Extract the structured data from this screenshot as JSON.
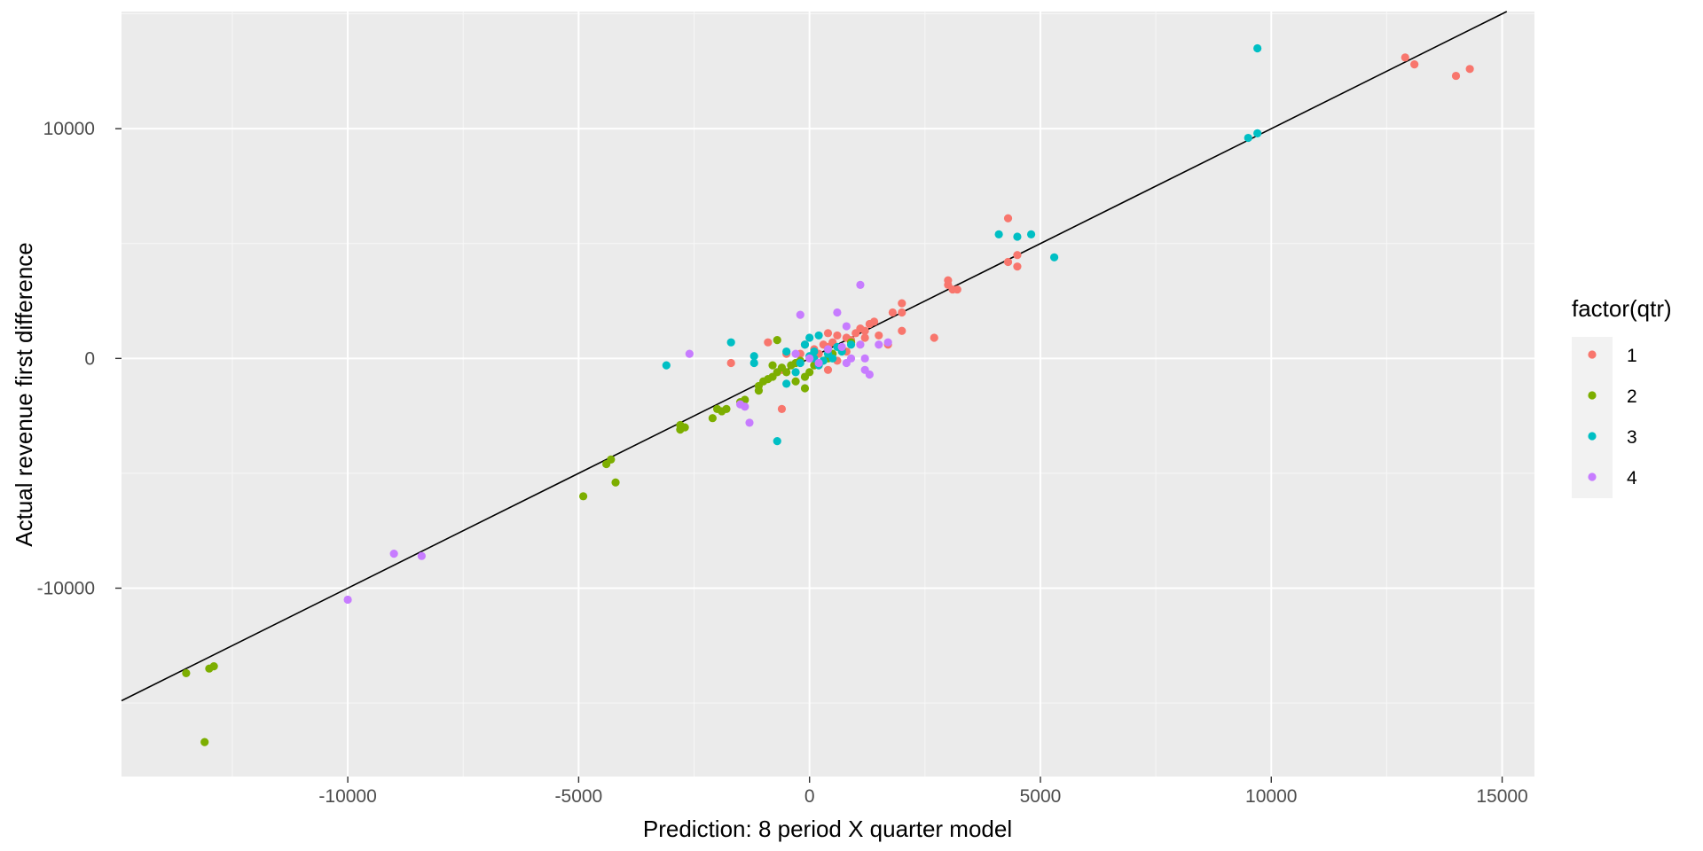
{
  "chart_data": {
    "type": "scatter",
    "xlabel": "Prediction: 8 period X quarter model",
    "ylabel": "Actual revenue first difference",
    "xlim": [
      -14900,
      15700
    ],
    "ylim": [
      -18200,
      15100
    ],
    "x_ticks": [
      -10000,
      -5000,
      0,
      5000,
      10000,
      15000
    ],
    "x_tick_labels": [
      "-10000",
      "-5000",
      "0",
      "5000",
      "10000",
      "15000"
    ],
    "y_ticks": [
      -10000,
      0,
      10000
    ],
    "y_tick_labels": [
      "-10000",
      "0",
      "10000"
    ],
    "grid": true,
    "background": "#ebebeb",
    "reference_line": {
      "slope": 1,
      "intercept": 0,
      "color": "#000000"
    },
    "legend": {
      "title": "factor(qtr)",
      "placement": "right",
      "entries": [
        {
          "label": "1",
          "color": "#F8766D"
        },
        {
          "label": "2",
          "color": "#7CAE00"
        },
        {
          "label": "3",
          "color": "#00BFC4"
        },
        {
          "label": "4",
          "color": "#C77CFF"
        }
      ]
    },
    "series": [
      {
        "name": "1",
        "color": "#F8766D",
        "points": [
          [
            12900,
            13100
          ],
          [
            13100,
            12800
          ],
          [
            14000,
            12300
          ],
          [
            14300,
            12600
          ],
          [
            4300,
            6100
          ],
          [
            4300,
            4200
          ],
          [
            4500,
            4500
          ],
          [
            4500,
            4000
          ],
          [
            3000,
            3400
          ],
          [
            3000,
            3200
          ],
          [
            3100,
            3000
          ],
          [
            3200,
            3000
          ],
          [
            2700,
            900
          ],
          [
            2000,
            2400
          ],
          [
            2000,
            2000
          ],
          [
            2000,
            1200
          ],
          [
            1800,
            2000
          ],
          [
            1700,
            600
          ],
          [
            1500,
            1000
          ],
          [
            1400,
            1600
          ],
          [
            1300,
            1500
          ],
          [
            1200,
            1200
          ],
          [
            1100,
            1300
          ],
          [
            1000,
            1100
          ],
          [
            900,
            800
          ],
          [
            800,
            900
          ],
          [
            600,
            1000
          ],
          [
            500,
            700
          ],
          [
            400,
            1100
          ],
          [
            400,
            500
          ],
          [
            400,
            -500
          ],
          [
            300,
            600
          ],
          [
            200,
            200
          ],
          [
            100,
            400
          ],
          [
            -100,
            600
          ],
          [
            -200,
            200
          ],
          [
            -500,
            200
          ],
          [
            -600,
            -500
          ],
          [
            -600,
            -2200
          ],
          [
            -900,
            700
          ],
          [
            -1700,
            -200
          ],
          [
            600,
            -100
          ],
          [
            800,
            300
          ],
          [
            1200,
            900
          ]
        ]
      },
      {
        "name": "2",
        "color": "#7CAE00",
        "points": [
          [
            -13500,
            -13700
          ],
          [
            -13000,
            -13500
          ],
          [
            -12900,
            -13400
          ],
          [
            -13100,
            -16700
          ],
          [
            -4900,
            -6000
          ],
          [
            -4400,
            -4600
          ],
          [
            -4300,
            -4400
          ],
          [
            -4200,
            -5400
          ],
          [
            -2800,
            -2900
          ],
          [
            -2800,
            -3100
          ],
          [
            -2700,
            -3000
          ],
          [
            -2100,
            -2600
          ],
          [
            -2000,
            -2200
          ],
          [
            -1900,
            -2300
          ],
          [
            -1800,
            -2200
          ],
          [
            -1500,
            -1900
          ],
          [
            -1400,
            -1800
          ],
          [
            -1100,
            -1400
          ],
          [
            -1100,
            -1200
          ],
          [
            -1000,
            -1000
          ],
          [
            -900,
            -900
          ],
          [
            -800,
            -800
          ],
          [
            -800,
            -300
          ],
          [
            -700,
            800
          ],
          [
            -700,
            -600
          ],
          [
            -600,
            -400
          ],
          [
            -500,
            -600
          ],
          [
            -400,
            -300
          ],
          [
            -300,
            -200
          ],
          [
            -300,
            -1000
          ],
          [
            -200,
            -100
          ],
          [
            -100,
            -1300
          ],
          [
            -100,
            -800
          ],
          [
            0,
            -600
          ],
          [
            100,
            -300
          ],
          [
            200,
            -200
          ],
          [
            300,
            -100
          ],
          [
            400,
            0
          ],
          [
            500,
            200
          ],
          [
            700,
            400
          ],
          [
            900,
            700
          ]
        ]
      },
      {
        "name": "3",
        "color": "#00BFC4",
        "points": [
          [
            9500,
            9600
          ],
          [
            9700,
            9800
          ],
          [
            9700,
            13500
          ],
          [
            4100,
            5400
          ],
          [
            4500,
            5300
          ],
          [
            4800,
            5400
          ],
          [
            5300,
            4400
          ],
          [
            -3100,
            -300
          ],
          [
            -1700,
            700
          ],
          [
            -1200,
            100
          ],
          [
            -1200,
            -200
          ],
          [
            -700,
            -3600
          ],
          [
            -500,
            300
          ],
          [
            -500,
            -1100
          ],
          [
            -300,
            -600
          ],
          [
            -200,
            -200
          ],
          [
            -100,
            600
          ],
          [
            0,
            900
          ],
          [
            0,
            100
          ],
          [
            100,
            300
          ],
          [
            100,
            0
          ],
          [
            200,
            1000
          ],
          [
            200,
            -300
          ],
          [
            300,
            -100
          ],
          [
            400,
            200
          ],
          [
            500,
            0
          ],
          [
            600,
            500
          ],
          [
            700,
            300
          ],
          [
            900,
            600
          ]
        ]
      },
      {
        "name": "4",
        "color": "#C77CFF",
        "points": [
          [
            -10000,
            -10500
          ],
          [
            -9000,
            -8500
          ],
          [
            -8400,
            -8600
          ],
          [
            -2600,
            200
          ],
          [
            -1500,
            -2000
          ],
          [
            -1400,
            -2100
          ],
          [
            -1300,
            -2800
          ],
          [
            -200,
            1900
          ],
          [
            0,
            0
          ],
          [
            200,
            -200
          ],
          [
            400,
            400
          ],
          [
            600,
            2000
          ],
          [
            700,
            500
          ],
          [
            800,
            1400
          ],
          [
            800,
            -200
          ],
          [
            900,
            0
          ],
          [
            1100,
            3200
          ],
          [
            1100,
            600
          ],
          [
            1200,
            0
          ],
          [
            1200,
            -500
          ],
          [
            1300,
            -700
          ],
          [
            1500,
            600
          ],
          [
            1700,
            700
          ],
          [
            -300,
            200
          ]
        ]
      }
    ]
  }
}
